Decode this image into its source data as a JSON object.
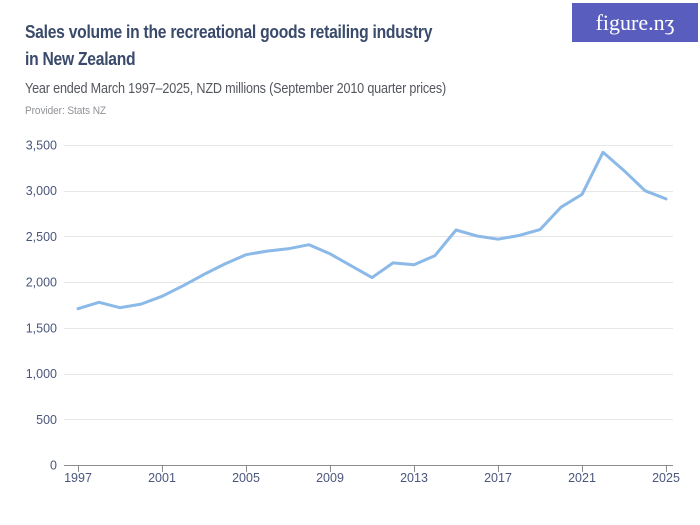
{
  "header": {
    "title_lines": [
      "Sales volume in the recreational goods retailing industry",
      "in New Zealand"
    ],
    "subtitle": "Year ended March 1997–2025, NZD millions (September 2010 quarter prices)",
    "provider": "Provider: Stats NZ",
    "logo_text": "figure.nʒ"
  },
  "colors": {
    "title": "#394a6b",
    "subtitle": "#54575e",
    "provider": "#8f9297",
    "logo_background": "#595dbe",
    "logo_text": "#ffffff",
    "line": "#8bb9e8",
    "gridline": "#e6e6e6",
    "axis": "#8c8c8c",
    "axis_label": "#4a567d",
    "background": "#ffffff"
  },
  "chart_data": {
    "type": "line",
    "title": "Sales volume in the recreational goods retailing industry in New Zealand",
    "subtitle": "Year ended March 1997–2025, NZD millions (September 2010 quarter prices)",
    "xlabel": "",
    "ylabel": "NZD millions (September 2010 quarter prices)",
    "series_name": "Sales volume",
    "x": [
      1997,
      1998,
      1999,
      2000,
      2001,
      2002,
      2003,
      2004,
      2005,
      2006,
      2007,
      2008,
      2009,
      2010,
      2011,
      2012,
      2013,
      2014,
      2015,
      2016,
      2017,
      2018,
      2019,
      2020,
      2021,
      2022,
      2023,
      2024,
      2025
    ],
    "values": [
      1710,
      1780,
      1720,
      1760,
      1845,
      1960,
      2085,
      2200,
      2300,
      2340,
      2365,
      2410,
      2310,
      2180,
      2050,
      2210,
      2190,
      2290,
      2570,
      2505,
      2470,
      2510,
      2575,
      2820,
      2960,
      3420,
      3220,
      3000,
      2910
    ],
    "x_ticks": [
      1997,
      2001,
      2005,
      2009,
      2013,
      2017,
      2021,
      2025
    ],
    "x_tick_labels": [
      "1997",
      "2001",
      "2005",
      "2009",
      "2013",
      "2017",
      "2021",
      "2025"
    ],
    "y_ticks": [
      0,
      500,
      1000,
      1500,
      2000,
      2500,
      3000,
      3500
    ],
    "y_tick_labels": [
      "0",
      "500",
      "1,000",
      "1,500",
      "2,000",
      "2,500",
      "3,000",
      "3,500"
    ],
    "xlim": [
      1997,
      2025
    ],
    "ylim": [
      0,
      3500
    ],
    "grid": true,
    "legend": false
  }
}
